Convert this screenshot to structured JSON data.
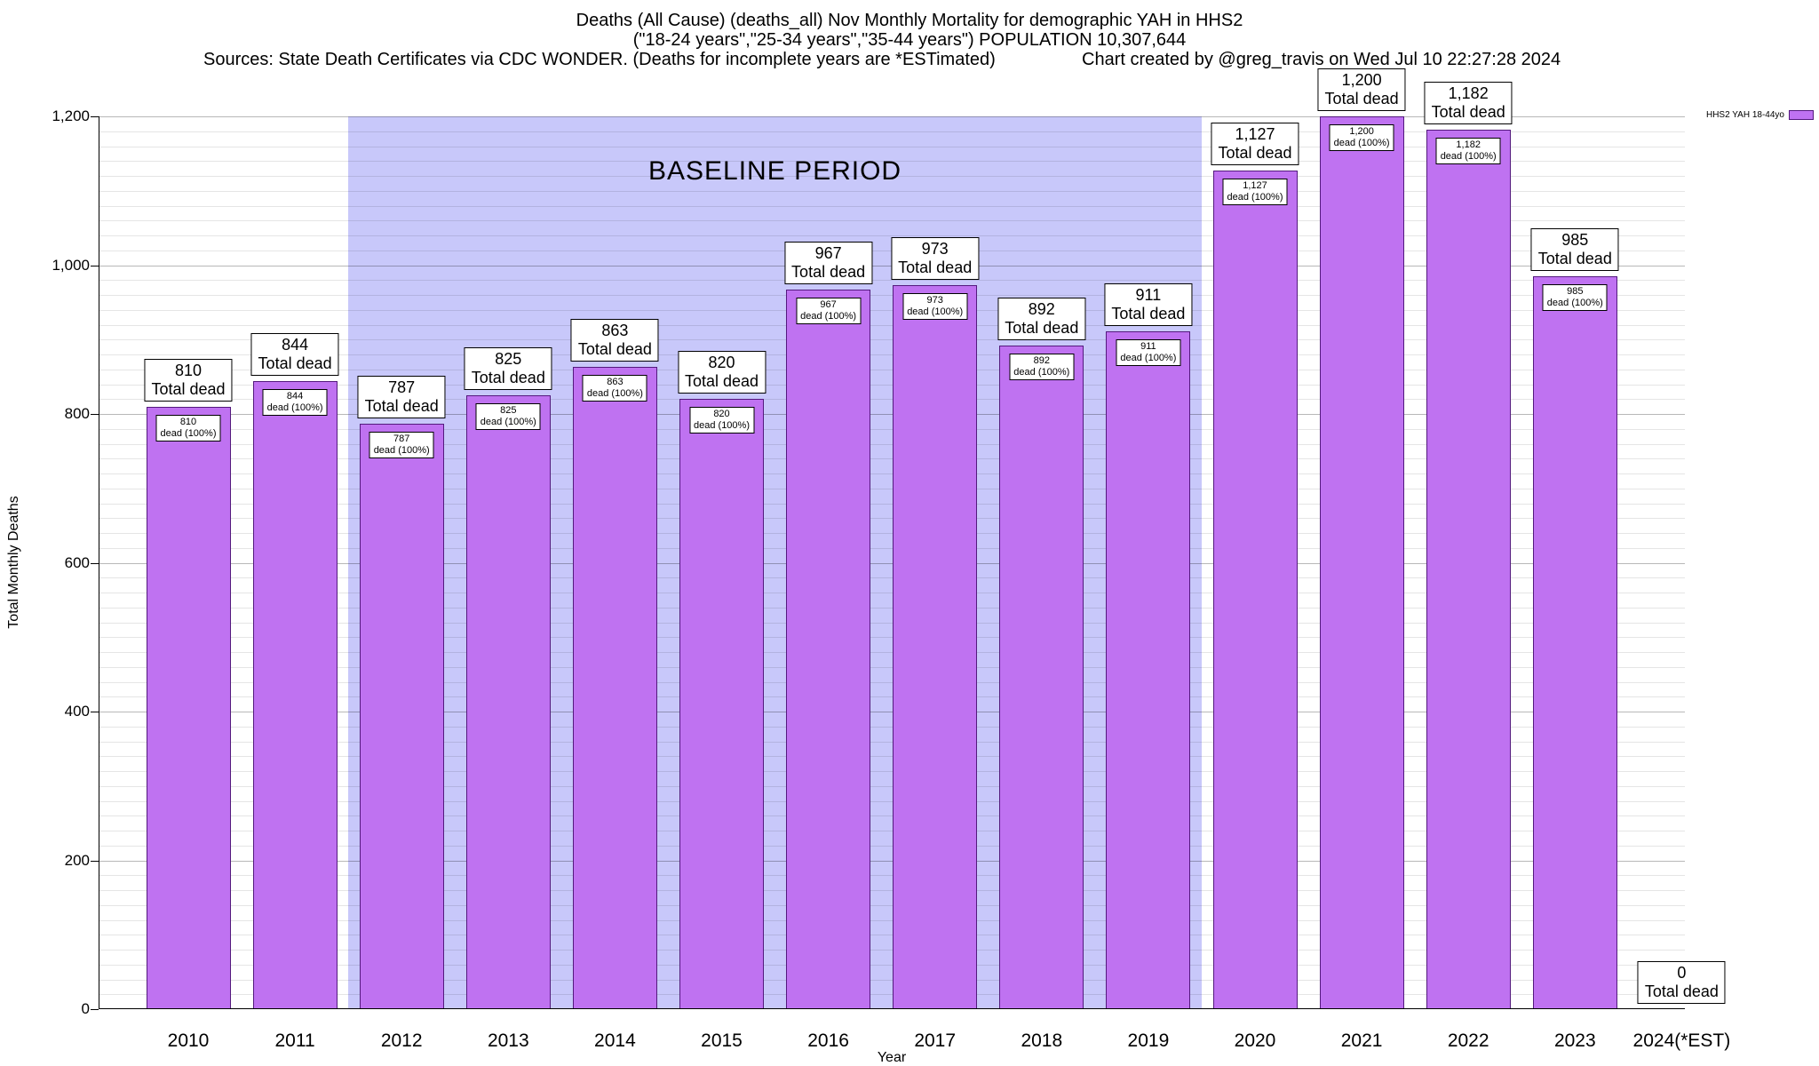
{
  "title": {
    "line1": "Deaths (All Cause) (deaths_all) Nov Monthly Mortality for demographic YAH in HHS2",
    "line2": "(\"18-24 years\",\"25-34 years\",\"35-44 years\") POPULATION 10,307,644",
    "sources": "Sources: State Death Certificates via CDC WONDER. (Deaths for incomplete years are *ESTimated)",
    "credit": "Chart created by @greg_travis on Wed Jul 10 22:27:28 2024"
  },
  "chart_data": {
    "type": "bar",
    "title": "Deaths (All Cause) (deaths_all) Nov Monthly Mortality for demographic YAH in HHS2",
    "subtitle": "(\"18-24 years\",\"25-34 years\",\"35-44 years\") POPULATION 10,307,644",
    "categories": [
      "2010",
      "2011",
      "2012",
      "2013",
      "2014",
      "2015",
      "2016",
      "2017",
      "2018",
      "2019",
      "2020",
      "2021",
      "2022",
      "2023",
      "2024(*EST)"
    ],
    "values": [
      810,
      844,
      787,
      825,
      863,
      820,
      967,
      973,
      892,
      911,
      1127,
      1200,
      1182,
      985,
      0
    ],
    "value_labels": [
      "810",
      "844",
      "787",
      "825",
      "863",
      "820",
      "967",
      "973",
      "892",
      "911",
      "1,127",
      "1,200",
      "1,182",
      "985",
      "0"
    ],
    "outer_label_suffix": "Total dead",
    "inner_label_suffix": "dead (100%)",
    "xlabel": "Year",
    "ylabel": "Total Monthly Deaths",
    "ylim": [
      0,
      1200
    ],
    "ytick_step": 200,
    "minor_grid_step": 20,
    "grid": true,
    "legend": "HHS2 YAH 18-44yo",
    "legend_position": "top-right",
    "baseline_region": {
      "label": "BASELINE PERIOD",
      "from_category": "2012",
      "to_category": "2019"
    },
    "colors": {
      "bar_fill": "#bf72f1",
      "bar_border": "#53197d",
      "baseline_fill": "#c8c8fa"
    }
  }
}
